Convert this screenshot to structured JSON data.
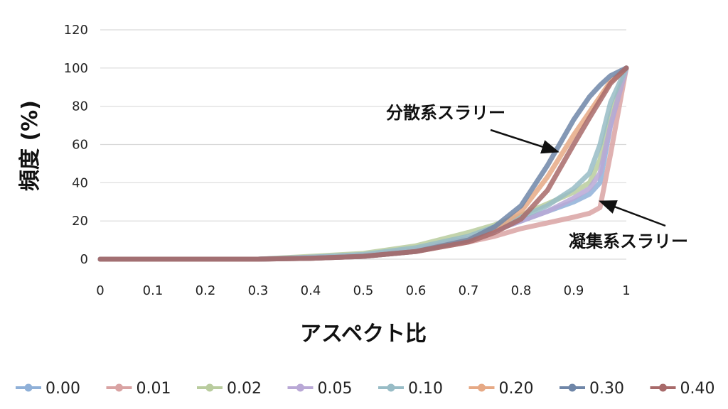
{
  "chart_data": {
    "type": "line",
    "xlabel": "アスペクト比",
    "ylabel": "頻度 (%)",
    "xlim": [
      0,
      1
    ],
    "ylim": [
      0,
      120
    ],
    "x_ticks": [
      "0",
      "0.1",
      "0.2",
      "0.3",
      "0.4",
      "0.5",
      "0.6",
      "0.7",
      "0.8",
      "0.9",
      "1"
    ],
    "y_ticks": [
      "0",
      "20",
      "40",
      "60",
      "80",
      "100",
      "120"
    ],
    "grid": "horizontal",
    "legend_position": "bottom",
    "x": [
      0,
      0.1,
      0.2,
      0.3,
      0.4,
      0.5,
      0.6,
      0.7,
      0.75,
      0.8,
      0.85,
      0.9,
      0.93,
      0.95,
      0.97,
      1.0
    ],
    "series": [
      {
        "name": "0.00",
        "color": "#8fb0d8",
        "values": [
          0,
          0,
          0,
          0,
          1,
          2,
          5,
          11,
          15,
          20,
          25,
          30,
          34,
          40,
          70,
          100
        ]
      },
      {
        "name": "0.01",
        "color": "#d9a3a3",
        "values": [
          0,
          0,
          0,
          0,
          0.5,
          1.5,
          4,
          9,
          12,
          16,
          19,
          22,
          24,
          27,
          55,
          100
        ]
      },
      {
        "name": "0.02",
        "color": "#b9cc9e",
        "values": [
          0,
          0,
          0,
          0,
          1.5,
          3,
          7,
          14,
          18,
          23,
          29,
          35,
          40,
          52,
          75,
          100
        ]
      },
      {
        "name": "0.05",
        "color": "#b9a8d6",
        "values": [
          0,
          0,
          0,
          0,
          1,
          2,
          5,
          11,
          15,
          20,
          25,
          32,
          37,
          45,
          70,
          100
        ]
      },
      {
        "name": "0.10",
        "color": "#98bcc6",
        "values": [
          0,
          0,
          0,
          0,
          1,
          2.5,
          6,
          12,
          17,
          22,
          28,
          37,
          45,
          60,
          82,
          100
        ]
      },
      {
        "name": "0.20",
        "color": "#e6a985",
        "values": [
          0,
          0,
          0,
          0,
          0.5,
          1.5,
          4,
          10,
          16,
          25,
          43,
          65,
          77,
          85,
          93,
          100
        ]
      },
      {
        "name": "0.30",
        "color": "#6f86a8",
        "values": [
          0,
          0,
          0,
          0,
          0.5,
          1.5,
          4,
          10,
          17,
          28,
          49,
          73,
          85,
          91,
          96,
          100
        ]
      },
      {
        "name": "0.40",
        "color": "#a86a6a",
        "values": [
          0,
          0,
          0,
          0,
          0.5,
          1.5,
          4,
          9,
          14,
          21,
          36,
          60,
          74,
          83,
          92,
          100
        ]
      }
    ],
    "annotations": [
      {
        "text": "分散系スラリー",
        "target": {
          "x": 0.875,
          "y": 54
        }
      },
      {
        "text": "凝集系スラリー",
        "target": {
          "x": 0.945,
          "y": 31
        }
      }
    ]
  }
}
